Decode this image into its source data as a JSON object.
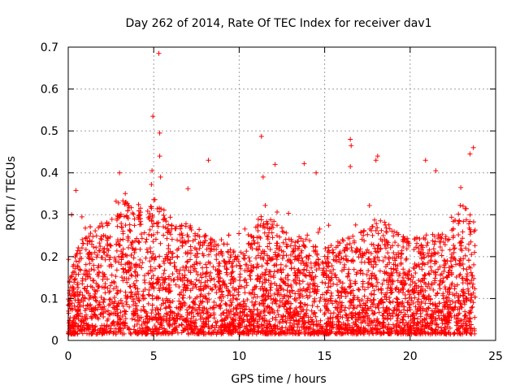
{
  "chart_data": {
    "type": "scatter",
    "title": "Day 262 of 2014, Rate Of TEC Index for receiver dav1",
    "xlabel": "GPS time / hours",
    "ylabel": "ROTI / TECUs",
    "xlim": [
      0,
      25
    ],
    "ylim": [
      0,
      0.7
    ],
    "xticks": [
      "0",
      "5",
      "10",
      "15",
      "20",
      "25"
    ],
    "yticks": [
      "0",
      "0.1",
      "0.2",
      "0.3",
      "0.4",
      "0.5",
      "0.6",
      "0.7"
    ],
    "grid": true,
    "marker": "+",
    "color": "#ff0000",
    "outliers": [
      {
        "x": 5.3,
        "y": 0.685
      },
      {
        "x": 4.95,
        "y": 0.535
      },
      {
        "x": 5.35,
        "y": 0.495
      },
      {
        "x": 11.3,
        "y": 0.487
      },
      {
        "x": 16.5,
        "y": 0.48
      },
      {
        "x": 16.55,
        "y": 0.465
      },
      {
        "x": 23.7,
        "y": 0.46
      },
      {
        "x": 23.5,
        "y": 0.445
      },
      {
        "x": 5.35,
        "y": 0.44
      },
      {
        "x": 18.1,
        "y": 0.44
      },
      {
        "x": 18.0,
        "y": 0.43
      },
      {
        "x": 8.2,
        "y": 0.43
      },
      {
        "x": 20.9,
        "y": 0.43
      },
      {
        "x": 13.8,
        "y": 0.422
      },
      {
        "x": 12.1,
        "y": 0.42
      },
      {
        "x": 16.5,
        "y": 0.415
      },
      {
        "x": 21.5,
        "y": 0.405
      },
      {
        "x": 4.9,
        "y": 0.405
      },
      {
        "x": 14.5,
        "y": 0.4
      },
      {
        "x": 3.0,
        "y": 0.4
      },
      {
        "x": 5.4,
        "y": 0.39
      },
      {
        "x": 11.4,
        "y": 0.39
      },
      {
        "x": 0.45,
        "y": 0.358
      },
      {
        "x": 7.0,
        "y": 0.362
      },
      {
        "x": 0.2,
        "y": 0.3
      },
      {
        "x": 0.8,
        "y": 0.295
      }
    ]
  }
}
